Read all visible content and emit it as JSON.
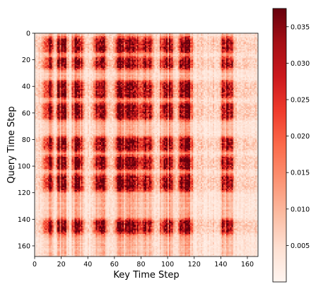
{
  "chart_data": {
    "type": "heatmap",
    "title": "",
    "xlabel": "Key Time Step",
    "ylabel": "Query Time Step",
    "colormap": "Reds",
    "rows": 168,
    "cols": 168,
    "xlim": [
      0,
      168
    ],
    "ylim": [
      0,
      168
    ],
    "x_ticks": [
      0,
      20,
      40,
      60,
      80,
      100,
      120,
      140,
      160
    ],
    "y_ticks": [
      0,
      20,
      40,
      60,
      80,
      100,
      120,
      140,
      160
    ],
    "colorbar": {
      "min": 0.0,
      "max": 0.0375,
      "ticks": [
        0.005,
        0.01,
        0.015,
        0.02,
        0.025,
        0.03,
        0.035
      ],
      "tick_labels": [
        "0.005",
        "0.010",
        "0.015",
        "0.020",
        "0.025",
        "0.030",
        "0.035"
      ]
    },
    "pattern": {
      "description_of_values": "attention weights; periodic block structure",
      "hot_key_bands": [
        [
          8,
          11
        ],
        [
          18,
          22
        ],
        [
          30,
          34
        ],
        [
          46,
          52
        ],
        [
          62,
          68
        ],
        [
          70,
          76
        ],
        [
          80,
          86
        ],
        [
          96,
          102
        ],
        [
          110,
          116
        ],
        [
          142,
          147
        ]
      ],
      "hot_query_bands": [
        [
          5,
          12
        ],
        [
          20,
          24
        ],
        [
          38,
          46
        ],
        [
          54,
          62
        ],
        [
          80,
          86
        ],
        [
          94,
          100
        ],
        [
          108,
          116
        ],
        [
          142,
          148
        ]
      ],
      "peak_value": 0.037,
      "background_value": 0.004
    }
  },
  "axes": {
    "xlabel": "Key Time Step",
    "ylabel": "Query Time Step",
    "x_tick_labels": [
      "0",
      "20",
      "40",
      "60",
      "80",
      "100",
      "120",
      "140",
      "160"
    ],
    "y_tick_labels": [
      "0",
      "20",
      "40",
      "60",
      "80",
      "100",
      "120",
      "140",
      "160"
    ]
  },
  "colors": {
    "low": "#fff5f0",
    "mid": "#fb6a4a",
    "high": "#67000d"
  }
}
